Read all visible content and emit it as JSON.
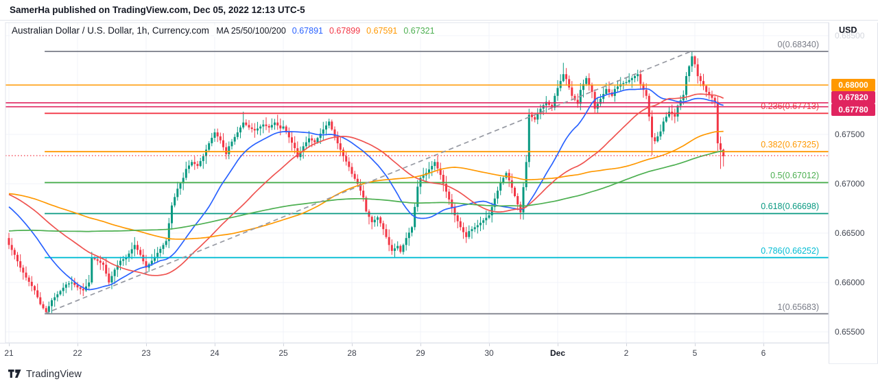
{
  "published_bar": {
    "text": "SamerHa published on TradingView.com, Dec 05, 2022 12:13 UTC-5"
  },
  "legend": {
    "title": "Australian Dollar / U.S. Dollar, 1h, Currency.com",
    "ma_label": "MA 25/50/100/200",
    "ma_values": [
      {
        "value": "0.67891",
        "color": "#2962ff"
      },
      {
        "value": "0.67899",
        "color": "#f23645"
      },
      {
        "value": "0.67591",
        "color": "#ff9800"
      },
      {
        "value": "0.67321",
        "color": "#4caf50"
      }
    ]
  },
  "axis": {
    "currency_label": "USD",
    "price_ticks": [
      {
        "label": "0.68500",
        "price": 0.685,
        "muted": true
      },
      {
        "label": "0.67500",
        "price": 0.675,
        "muted": false
      },
      {
        "label": "0.67000",
        "price": 0.67,
        "muted": false
      },
      {
        "label": "0.66500",
        "price": 0.665,
        "muted": false
      },
      {
        "label": "0.66000",
        "price": 0.66,
        "muted": false
      },
      {
        "label": "0.65500",
        "price": 0.655,
        "muted": false
      }
    ],
    "badges": [
      {
        "label": "0.68000",
        "color": "#ff9800"
      },
      {
        "label": "0.67820",
        "color": "#e0245f"
      },
      {
        "label": "0.67780",
        "color": "#e0245f"
      }
    ],
    "time_ticks": [
      {
        "label": "21",
        "bar": 0,
        "bold": false
      },
      {
        "label": "22",
        "bar": 24,
        "bold": false
      },
      {
        "label": "23",
        "bar": 48,
        "bold": false
      },
      {
        "label": "24",
        "bar": 72,
        "bold": false
      },
      {
        "label": "25",
        "bar": 96,
        "bold": false
      },
      {
        "label": "28",
        "bar": 120,
        "bold": false
      },
      {
        "label": "29",
        "bar": 144,
        "bold": false
      },
      {
        "label": "30",
        "bar": 168,
        "bold": false
      },
      {
        "label": "Dec",
        "bar": 192,
        "bold": true
      },
      {
        "label": "2",
        "bar": 216,
        "bold": false
      },
      {
        "label": "5",
        "bar": 240,
        "bold": false
      },
      {
        "label": "6",
        "bar": 264,
        "bold": false
      }
    ]
  },
  "footer": {
    "brand": "TradingView"
  },
  "colors": {
    "grid": "#f0f3fa",
    "frame": "#e0e3eb",
    "up": "#089981",
    "down": "#f23645",
    "trendline": "#9598a1",
    "price_line": "#f23645"
  },
  "chart_data": {
    "type": "candlestick",
    "symbol": "Australian Dollar / U.S. Dollar",
    "interval": "1h",
    "exchange": "Currency.com",
    "bars_per_day": 24,
    "y_axis": {
      "min": 0.6539,
      "max": 0.6863,
      "tick_step": 0.005
    },
    "close_waypoints": [
      [
        0,
        0.6638
      ],
      [
        2,
        0.6628
      ],
      [
        4,
        0.6615
      ],
      [
        6,
        0.6605
      ],
      [
        9,
        0.6592
      ],
      [
        11,
        0.6578
      ],
      [
        13,
        0.657
      ],
      [
        15,
        0.6582
      ],
      [
        17,
        0.6588
      ],
      [
        20,
        0.6598
      ],
      [
        22,
        0.66
      ],
      [
        24,
        0.6595
      ],
      [
        26,
        0.6592
      ],
      [
        28,
        0.66
      ],
      [
        29,
        0.6625
      ],
      [
        31,
        0.6622
      ],
      [
        33,
        0.6618
      ],
      [
        35,
        0.66
      ],
      [
        37,
        0.6613
      ],
      [
        39,
        0.6622
      ],
      [
        41,
        0.6625
      ],
      [
        44,
        0.6638
      ],
      [
        46,
        0.6628
      ],
      [
        48,
        0.6615
      ],
      [
        50,
        0.6622
      ],
      [
        52,
        0.663
      ],
      [
        55,
        0.6642
      ],
      [
        57,
        0.6678
      ],
      [
        59,
        0.6695
      ],
      [
        61,
        0.6706
      ],
      [
        62,
        0.6715
      ],
      [
        64,
        0.6722
      ],
      [
        66,
        0.6718
      ],
      [
        68,
        0.6728
      ],
      [
        70,
        0.6741
      ],
      [
        72,
        0.6752
      ],
      [
        74,
        0.6744
      ],
      [
        76,
        0.673
      ],
      [
        77,
        0.6738
      ],
      [
        80,
        0.6752
      ],
      [
        82,
        0.6762
      ],
      [
        84,
        0.6757
      ],
      [
        86,
        0.6754
      ],
      [
        89,
        0.676
      ],
      [
        91,
        0.6757
      ],
      [
        93,
        0.6762
      ],
      [
        95,
        0.6756
      ],
      [
        96,
        0.6758
      ],
      [
        98,
        0.6747
      ],
      [
        100,
        0.6736
      ],
      [
        101,
        0.6727
      ],
      [
        103,
        0.6738
      ],
      [
        105,
        0.6746
      ],
      [
        107,
        0.6742
      ],
      [
        110,
        0.6755
      ],
      [
        112,
        0.6763
      ],
      [
        113,
        0.6755
      ],
      [
        115,
        0.6741
      ],
      [
        117,
        0.6728
      ],
      [
        119,
        0.6717
      ],
      [
        120,
        0.671
      ],
      [
        122,
        0.67
      ],
      [
        124,
        0.6686
      ],
      [
        125,
        0.6672
      ],
      [
        127,
        0.6661
      ],
      [
        129,
        0.6666
      ],
      [
        131,
        0.6654
      ],
      [
        133,
        0.6638
      ],
      [
        134,
        0.6632
      ],
      [
        136,
        0.6637
      ],
      [
        137,
        0.6631
      ],
      [
        139,
        0.6645
      ],
      [
        141,
        0.6656
      ],
      [
        143,
        0.6697
      ],
      [
        144,
        0.6706
      ],
      [
        146,
        0.6711
      ],
      [
        148,
        0.6718
      ],
      [
        149,
        0.6722
      ],
      [
        151,
        0.6709
      ],
      [
        152,
        0.67
      ],
      [
        154,
        0.6684
      ],
      [
        156,
        0.6668
      ],
      [
        158,
        0.6656
      ],
      [
        160,
        0.6646
      ],
      [
        161,
        0.6652
      ],
      [
        164,
        0.6658
      ],
      [
        166,
        0.6663
      ],
      [
        168,
        0.6668
      ],
      [
        170,
        0.6685
      ],
      [
        172,
        0.6701
      ],
      [
        174,
        0.6711
      ],
      [
        176,
        0.6696
      ],
      [
        178,
        0.6679
      ],
      [
        179,
        0.6671
      ],
      [
        181,
        0.6722
      ],
      [
        182,
        0.677
      ],
      [
        184,
        0.6765
      ],
      [
        186,
        0.6776
      ],
      [
        188,
        0.6783
      ],
      [
        190,
        0.6777
      ],
      [
        191,
        0.6789
      ],
      [
        192,
        0.6797
      ],
      [
        194,
        0.6811
      ],
      [
        195,
        0.6806
      ],
      [
        197,
        0.6789
      ],
      [
        199,
        0.6781
      ],
      [
        200,
        0.6795
      ],
      [
        202,
        0.6807
      ],
      [
        204,
        0.6793
      ],
      [
        205,
        0.6776
      ],
      [
        207,
        0.6786
      ],
      [
        209,
        0.6796
      ],
      [
        211,
        0.6789
      ],
      [
        212,
        0.6796
      ],
      [
        214,
        0.6801
      ],
      [
        216,
        0.6803
      ],
      [
        218,
        0.6807
      ],
      [
        220,
        0.6811
      ],
      [
        221,
        0.6801
      ],
      [
        223,
        0.6789
      ],
      [
        225,
        0.6747
      ],
      [
        226,
        0.6743
      ],
      [
        228,
        0.6753
      ],
      [
        229,
        0.6763
      ],
      [
        231,
        0.6773
      ],
      [
        233,
        0.6768
      ],
      [
        234,
        0.6779
      ],
      [
        236,
        0.679
      ],
      [
        237,
        0.6809
      ],
      [
        239,
        0.6829
      ],
      [
        240,
        0.6821
      ],
      [
        241,
        0.6809
      ],
      [
        243,
        0.6799
      ],
      [
        244,
        0.6793
      ],
      [
        246,
        0.6787
      ],
      [
        247,
        0.6783
      ],
      [
        248,
        0.6741
      ],
      [
        250,
        0.6728
      ]
    ],
    "history_waypoints": [
      [
        0,
        0.6595
      ],
      [
        80,
        0.662
      ],
      [
        110,
        0.668
      ],
      [
        130,
        0.67
      ],
      [
        170,
        0.6703
      ],
      [
        185,
        0.6685
      ],
      [
        199,
        0.6656
      ]
    ],
    "wick_overrides": {
      "13": {
        "low": 0.65683
      },
      "29": {
        "high": 0.6631
      },
      "82": {
        "high": 0.6773
      },
      "101": {
        "low": 0.67255
      },
      "112": {
        "high": 0.6766
      },
      "134": {
        "low": 0.6628
      },
      "149": {
        "high": 0.6725
      },
      "160": {
        "low": 0.664
      },
      "182": {
        "high": 0.6776
      },
      "194": {
        "high": 0.68225
      },
      "205": {
        "low": 0.6772
      },
      "220": {
        "high": 0.68155
      },
      "225": {
        "low": 0.6729
      },
      "239": {
        "high": 0.6834
      },
      "240": {
        "high": 0.683
      },
      "249": {
        "low": 0.6715
      },
      "250": {
        "low": 0.67175
      }
    },
    "fib_retracement": {
      "start": {
        "bar": 12.5,
        "price": 0.65683
      },
      "end": {
        "bar": 238.6,
        "price": 0.6834
      },
      "levels": [
        {
          "level": "0",
          "price": 0.6834,
          "label": "0(0.68340)",
          "color": "#787b86"
        },
        {
          "level": "0.236",
          "price": 0.67713,
          "label": "0.236(0.67713)",
          "color": "#f23645"
        },
        {
          "level": "0.382",
          "price": 0.67325,
          "label": "0.382(0.67325)",
          "color": "#ff9800"
        },
        {
          "level": "0.5",
          "price": 0.67012,
          "label": "0.5(0.67012)",
          "color": "#4caf50"
        },
        {
          "level": "0.618",
          "price": 0.66698,
          "label": "0.618(0.66698)",
          "color": "#089981"
        },
        {
          "level": "0.786",
          "price": 0.66252,
          "label": "0.786(0.66252)",
          "color": "#00bcd4"
        },
        {
          "level": "1",
          "price": 0.65683,
          "label": "1(0.65683)",
          "color": "#787b86"
        }
      ]
    },
    "horizontal_lines": [
      {
        "price": 0.68,
        "color": "#ff9800"
      },
      {
        "price": 0.6782,
        "color": "#e0245f"
      },
      {
        "price": 0.6778,
        "color": "#e0245f"
      }
    ],
    "trendline": {
      "from": {
        "bar": 12.5,
        "price": 0.65683
      },
      "to": {
        "bar": 238.6,
        "price": 0.6834
      },
      "style": "dashed",
      "color": "#9598a1"
    },
    "price_line": {
      "price": 0.67285,
      "style": "dotted",
      "color": "#f23645"
    },
    "moving_averages": [
      {
        "period": 25,
        "color": "#2962ff"
      },
      {
        "period": 50,
        "color": "#ef5350"
      },
      {
        "period": 100,
        "color": "#ff9800"
      },
      {
        "period": 200,
        "color": "#4caf50"
      }
    ],
    "candle_colors": {
      "up": "#089981",
      "down": "#f23645"
    }
  }
}
